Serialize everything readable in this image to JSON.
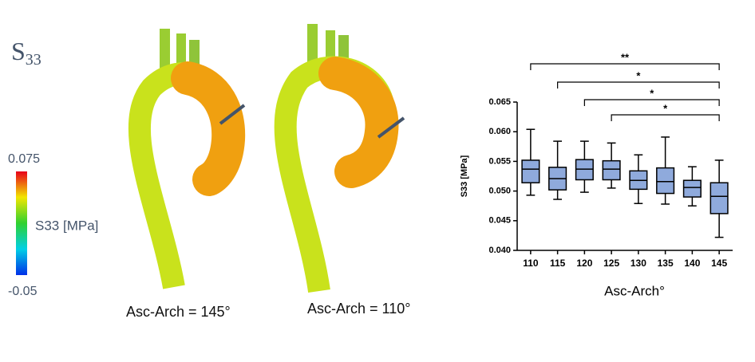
{
  "panel_label": {
    "main": "S",
    "sub": "33"
  },
  "colorbar": {
    "max": "0.075",
    "label": "S33 [MPa]",
    "min": "-0.05"
  },
  "captions": [
    "Asc-Arch = 145°",
    "Asc-Arch = 110°"
  ],
  "chart_data": {
    "type": "box",
    "ylabel": "S33 [MPa]",
    "xlabel": "Asc-Arch°",
    "categories": [
      "110",
      "115",
      "120",
      "125",
      "130",
      "135",
      "140",
      "145"
    ],
    "color": "#8faadc",
    "boxes": [
      {
        "low": 0.0493,
        "q1": 0.0514,
        "median": 0.0537,
        "q3": 0.0552,
        "high": 0.0604
      },
      {
        "low": 0.0486,
        "q1": 0.0502,
        "median": 0.0521,
        "q3": 0.054,
        "high": 0.0584
      },
      {
        "low": 0.0498,
        "q1": 0.0519,
        "median": 0.0537,
        "q3": 0.0553,
        "high": 0.0584
      },
      {
        "low": 0.0505,
        "q1": 0.0519,
        "median": 0.0537,
        "q3": 0.0551,
        "high": 0.0581
      },
      {
        "low": 0.0479,
        "q1": 0.0503,
        "median": 0.0518,
        "q3": 0.0534,
        "high": 0.0561
      },
      {
        "low": 0.0478,
        "q1": 0.0496,
        "median": 0.0516,
        "q3": 0.0539,
        "high": 0.0591
      },
      {
        "low": 0.0475,
        "q1": 0.049,
        "median": 0.0506,
        "q3": 0.0518,
        "high": 0.0541
      },
      {
        "low": 0.0422,
        "q1": 0.0462,
        "median": 0.0491,
        "q3": 0.0514,
        "high": 0.0552
      }
    ],
    "ylim": [
      0.04,
      0.065
    ],
    "yticks": [
      {
        "value": 0.04,
        "label": "0.040"
      },
      0.045,
      {
        "value": 0.05,
        "label": "0.050"
      },
      0.055,
      {
        "value": 0.06,
        "label": "0.060"
      },
      0.065
    ],
    "significance": [
      {
        "from": "110",
        "to": "145",
        "label": "**"
      },
      {
        "from": "115",
        "to": "145",
        "label": "*"
      },
      {
        "from": "120",
        "to": "145",
        "label": "*"
      },
      {
        "from": "125",
        "to": "145",
        "label": "*"
      }
    ]
  }
}
